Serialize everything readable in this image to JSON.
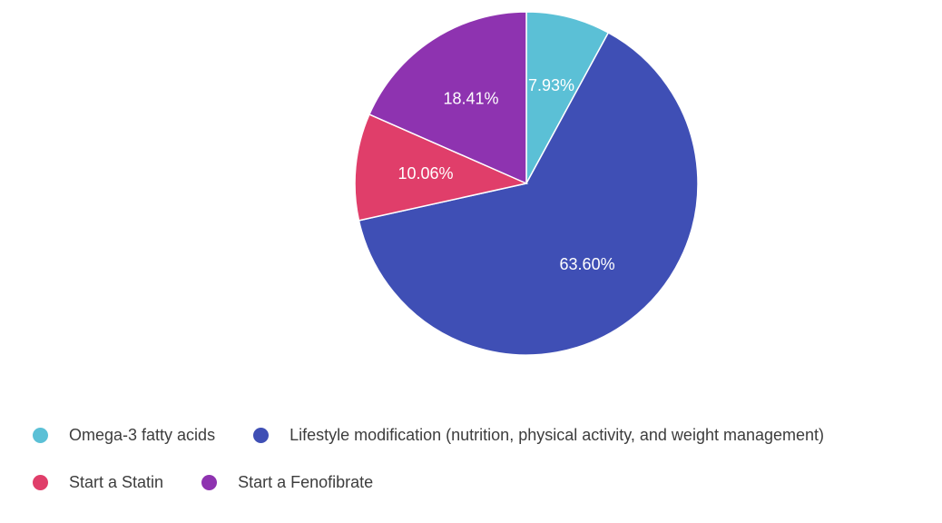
{
  "chart_data": {
    "type": "pie",
    "title": "",
    "slices": [
      {
        "label": "Omega-3 fatty acids",
        "value": 7.93,
        "display": "7.93%",
        "color": "#5bc0d6"
      },
      {
        "label": "Lifestyle modification (nutrition, physical activity, and weight management)",
        "value": 63.6,
        "display": "63.60%",
        "color": "#3f4fb5"
      },
      {
        "label": "Start a Statin",
        "value": 10.06,
        "display": "10.06%",
        "color": "#e03e6a"
      },
      {
        "label": "Start a Fenofibrate",
        "value": 18.41,
        "display": "18.41%",
        "color": "#8e33b0"
      }
    ],
    "legend_placement": "bottom",
    "slice_border_color": "#ffffff"
  },
  "legend": {
    "rows": [
      [
        0,
        1
      ],
      [
        2,
        3
      ]
    ]
  }
}
